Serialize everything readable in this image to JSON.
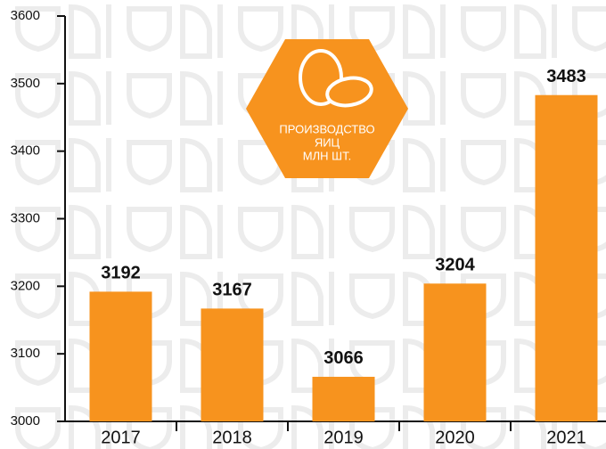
{
  "chart_data": {
    "type": "bar",
    "title": [
      "ПРОИЗВОДСТВО",
      "ЯИЦ",
      "МЛН ШТ."
    ],
    "categories": [
      "2017",
      "2018",
      "2019",
      "2020",
      "2021"
    ],
    "values": [
      3192,
      3167,
      3066,
      3204,
      3483
    ],
    "color": "#f7931e",
    "ylim": [
      3000,
      3600
    ],
    "yticks": [
      3000,
      3100,
      3200,
      3300,
      3400,
      3500,
      3600
    ],
    "grid": false
  }
}
